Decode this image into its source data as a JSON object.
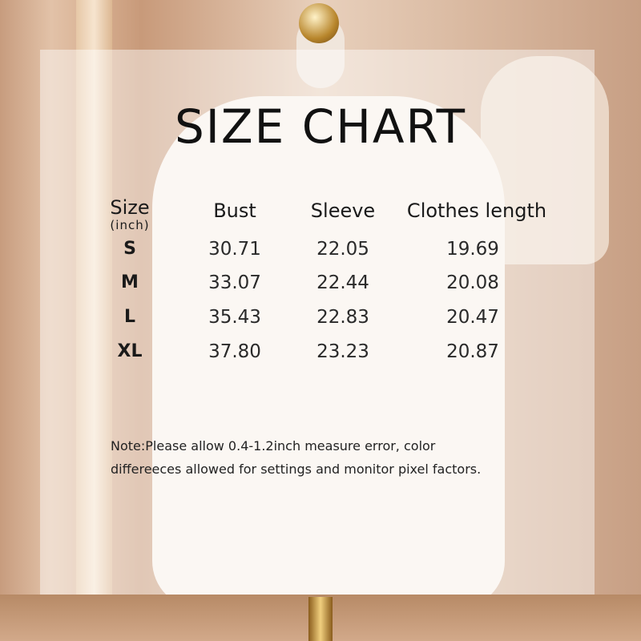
{
  "title": "SIZE CHART",
  "table": {
    "headers": [
      "Size",
      "Bust",
      "Sleeve",
      "Clothes length"
    ],
    "unit": "(inch)",
    "rows": [
      [
        "S",
        "30.71",
        "22.05",
        "19.69"
      ],
      [
        "M",
        "33.07",
        "22.44",
        "20.08"
      ],
      [
        "L",
        "35.43",
        "22.83",
        "20.47"
      ],
      [
        "XL",
        "37.80",
        "23.23",
        "20.87"
      ]
    ]
  },
  "note": {
    "line1": "Note:Please allow 0.4-1.2inch measure error, color",
    "line2": "differeeces allowed for settings and monitor pixel factors."
  }
}
